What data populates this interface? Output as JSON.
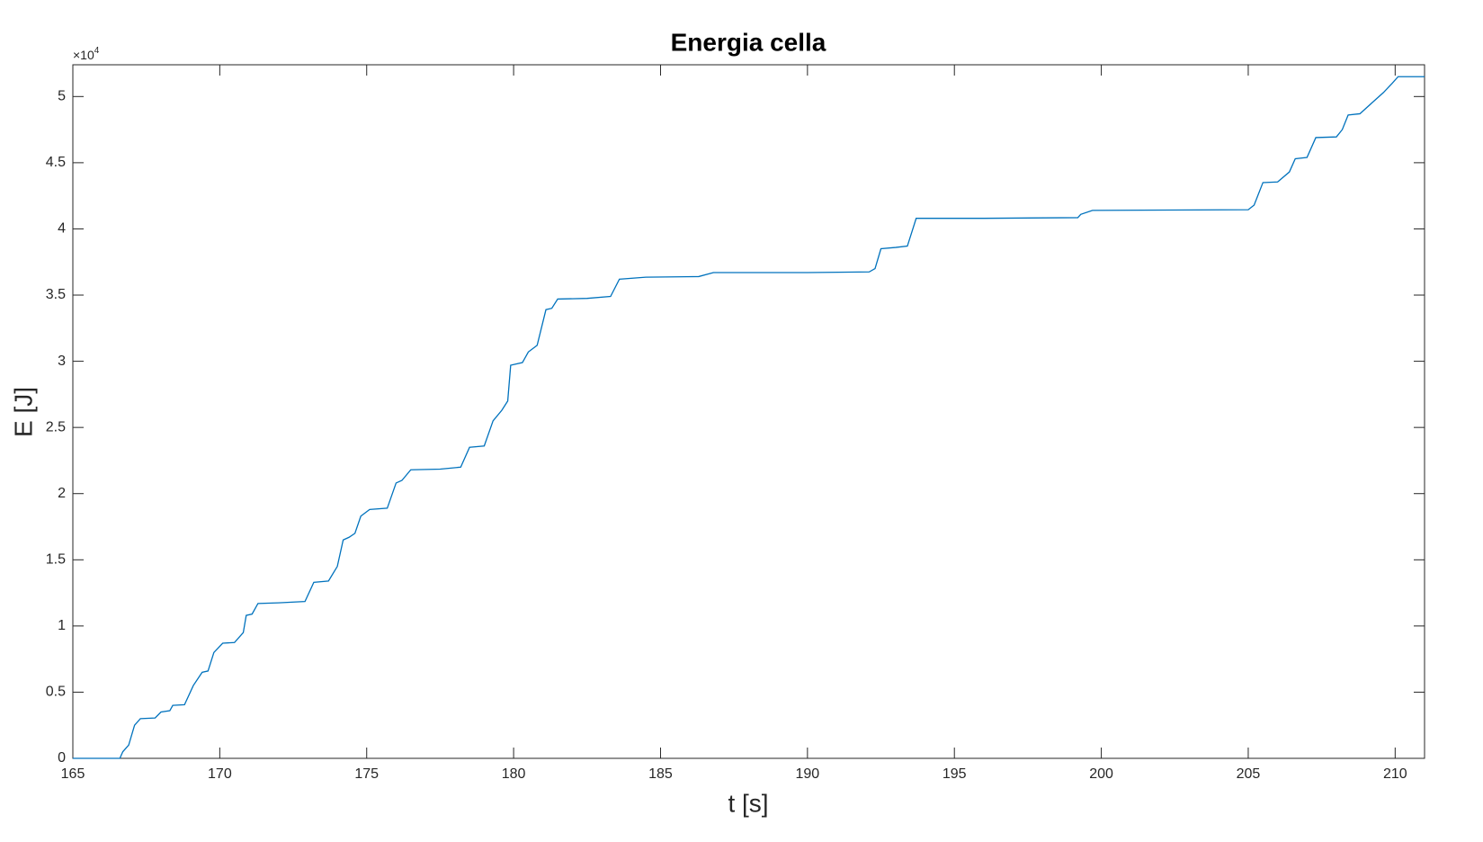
{
  "chart_data": {
    "type": "line",
    "title": "Energia cella",
    "xlabel": "t [s]",
    "ylabel": "E [J]",
    "y_multiplier": {
      "base": "×10",
      "exponent": "4"
    },
    "color": "#0072bd",
    "xlim": [
      165,
      211
    ],
    "xticks": [
      165,
      170,
      175,
      180,
      185,
      190,
      195,
      200,
      205,
      210
    ],
    "ylim": [
      0,
      52400
    ],
    "yticks": [
      0,
      {
        "value": 5000,
        "label": "0.5"
      },
      {
        "value": 10000,
        "label": "1"
      },
      {
        "value": 15000,
        "label": "1.5"
      },
      {
        "value": 20000,
        "label": "2"
      },
      {
        "value": 25000,
        "label": "2.5"
      },
      {
        "value": 30000,
        "label": "3"
      },
      {
        "value": 35000,
        "label": "3.5"
      },
      {
        "value": 40000,
        "label": "4"
      },
      {
        "value": 45000,
        "label": "4.5"
      },
      {
        "value": 50000,
        "label": "5"
      }
    ],
    "grid": false,
    "x": [
      165,
      166.6,
      166.7,
      166.9,
      167.1,
      167.3,
      167.8,
      168.0,
      168.3,
      168.4,
      168.8,
      169.1,
      169.4,
      169.6,
      169.8,
      170.1,
      170.5,
      170.8,
      170.9,
      171.1,
      171.3,
      172,
      172.9,
      173.2,
      173.7,
      174.0,
      174.2,
      174.4,
      174.6,
      174.8,
      175.1,
      175.7,
      176.0,
      176.2,
      176.5,
      177.5,
      178.2,
      178.5,
      179.0,
      179.3,
      179.6,
      179.8,
      179.9,
      180.3,
      180.5,
      180.8,
      181.1,
      181.3,
      181.5,
      182.5,
      183.3,
      183.6,
      184.5,
      186.3,
      186.8,
      190,
      192.1,
      192.3,
      192.5,
      193.0,
      193.4,
      193.7,
      196,
      199.2,
      199.3,
      199.7,
      205.0,
      205.2,
      205.5,
      206.0,
      206.4,
      206.6,
      207.0,
      207.3,
      208.0,
      208.2,
      208.4,
      208.8,
      209.2,
      209.6,
      209.9,
      210.1,
      211
    ],
    "values": [
      0,
      0,
      500,
      1000,
      2500,
      3000,
      3050,
      3500,
      3600,
      4000,
      4050,
      5500,
      6500,
      6600,
      8000,
      8700,
      8750,
      9500,
      10800,
      10900,
      11700,
      11750,
      11850,
      13300,
      13400,
      14500,
      16500,
      16700,
      17000,
      18300,
      18800,
      18900,
      20800,
      21000,
      21800,
      21850,
      22000,
      23500,
      23600,
      25500,
      26300,
      27000,
      29700,
      29900,
      30700,
      31200,
      33900,
      34000,
      34700,
      34750,
      34900,
      36200,
      36350,
      36400,
      36700,
      36700,
      36750,
      37000,
      38500,
      38600,
      38700,
      40800,
      40800,
      40850,
      41100,
      41400,
      41450,
      41800,
      43500,
      43550,
      44300,
      45300,
      45400,
      46900,
      46950,
      47500,
      48600,
      48700,
      49500,
      50300,
      51000,
      51500,
      51500
    ]
  }
}
